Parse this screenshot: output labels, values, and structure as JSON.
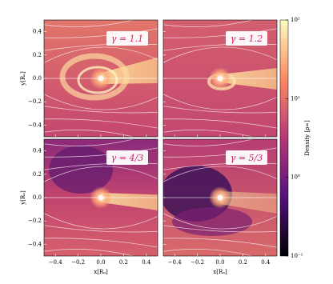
{
  "chart_data": {
    "type": "heatmap-grid",
    "panels": [
      {
        "label": "γ = 1.1"
      },
      {
        "label": "γ = 1.2"
      },
      {
        "label": "γ = 4/3"
      },
      {
        "label": "γ = 5/3"
      }
    ],
    "xlabel": "x[Rₐ]",
    "ylabel": "y[Rₐ]",
    "xlim": [
      -0.5,
      0.5
    ],
    "ylim": [
      -0.5,
      0.5
    ],
    "xticks": [
      {
        "value": -0.4,
        "label": "−0.4"
      },
      {
        "value": -0.2,
        "label": "−0.2"
      },
      {
        "value": 0,
        "label": "0.0"
      },
      0.2,
      0.4
    ],
    "yticks": [
      {
        "value": -0.4,
        "label": "−0.4"
      },
      {
        "value": -0.2,
        "label": "−0.2"
      },
      {
        "value": 0,
        "label": "0.0"
      },
      0.2,
      0.4
    ],
    "colorbar": {
      "label": "Density [ρ∞]",
      "log_scale": true,
      "zlim": [
        0.1,
        100
      ],
      "zticks": [
        {
          "value": 0.1,
          "label": "10⁻¹"
        },
        {
          "value": 1,
          "label": "10⁰"
        },
        {
          "value": 10,
          "label": "10¹"
        },
        {
          "value": 100,
          "label": "10²"
        }
      ]
    }
  }
}
